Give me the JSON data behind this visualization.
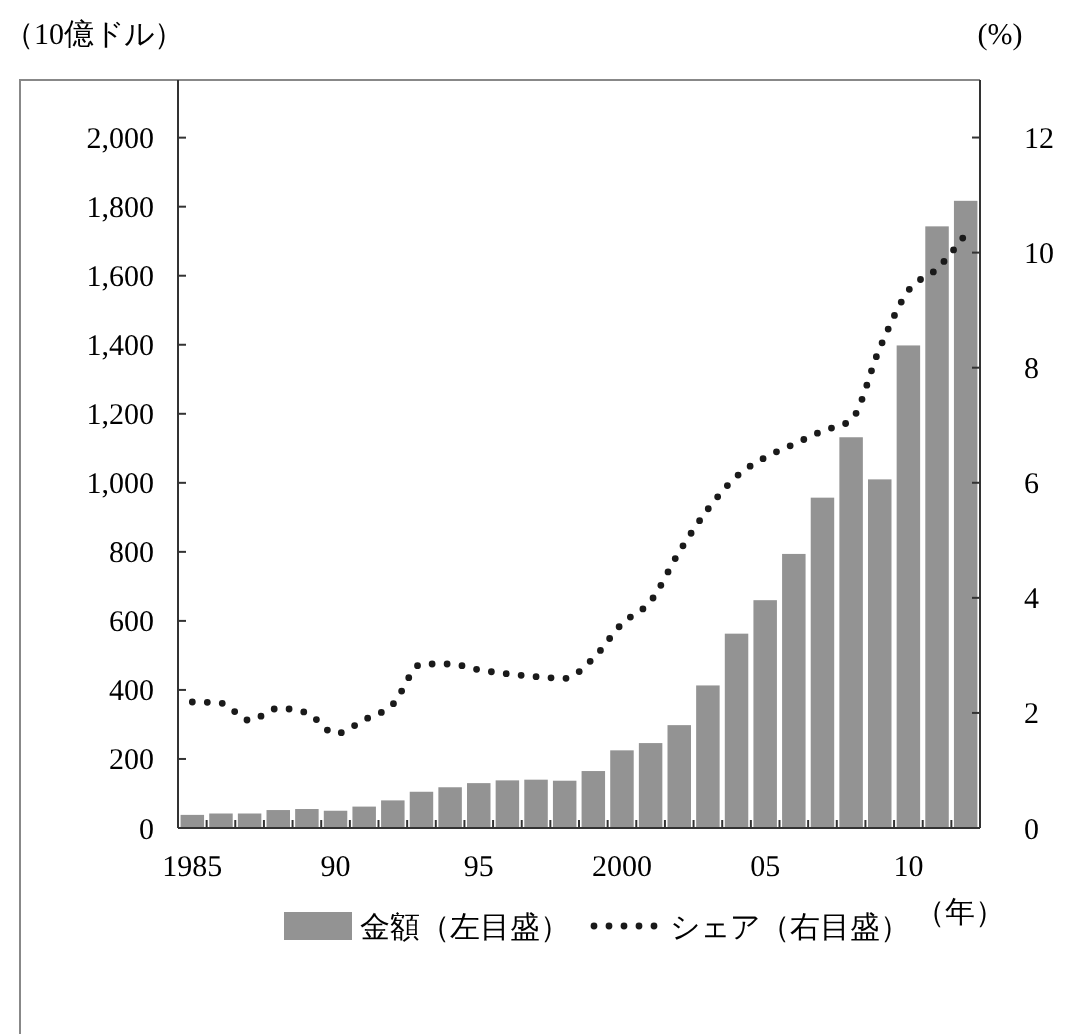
{
  "chart_data": {
    "type": "bar",
    "ylabel": "（10億ドル）",
    "y2label": "(%)",
    "annotations": [
      "（年）"
    ],
    "categories": [
      "1985",
      null,
      null,
      null,
      null,
      "90",
      null,
      null,
      null,
      null,
      "95",
      null,
      null,
      null,
      null,
      "2000",
      null,
      null,
      null,
      null,
      "05",
      null,
      null,
      null,
      null,
      "10",
      null,
      null
    ],
    "series": [
      {
        "name": "金額（左目盛）",
        "color": "#939393",
        "values": [
          38,
          42,
          42,
          52,
          55,
          50,
          62,
          80,
          105,
          118,
          130,
          138,
          140,
          137,
          165,
          225,
          246,
          298,
          413,
          563,
          660,
          794,
          957,
          1132,
          1010,
          1398,
          1743,
          1817
        ]
      },
      {
        "name": "シェア（右目盛）",
        "type": "line",
        "axis": "y2",
        "color": "#1a1a1a",
        "line_style": "dotted",
        "marker": "none",
        "values": [
          2.19,
          2.17,
          1.87,
          2.08,
          2.0,
          1.64,
          1.88,
          2.15,
          2.85,
          2.85,
          2.75,
          2.68,
          2.63,
          2.6,
          2.95,
          3.55,
          3.94,
          4.8,
          5.54,
          6.11,
          6.44,
          6.67,
          6.9,
          7.09,
          8.34,
          9.34,
          9.72,
          10.32
        ]
      }
    ],
    "ylim": [
      0,
      2167
    ],
    "yticks": [
      0,
      {
        "value": 200,
        "label": "200"
      },
      {
        "value": 400,
        "label": "400"
      },
      {
        "value": 600,
        "label": "600"
      },
      {
        "value": 800,
        "label": "800"
      },
      {
        "value": 1000,
        "label": "1,000"
      },
      {
        "value": 1200,
        "label": "1,200"
      },
      {
        "value": 1400,
        "label": "1,400"
      },
      {
        "value": 1600,
        "label": "1,600"
      },
      {
        "value": 1800,
        "label": "1,800"
      },
      {
        "value": 2000,
        "label": "2,000"
      }
    ],
    "y2lim": [
      0,
      13
    ],
    "y2ticks": [
      0,
      2,
      4,
      6,
      8,
      10,
      12
    ],
    "legend": "bottom",
    "grid": false
  }
}
